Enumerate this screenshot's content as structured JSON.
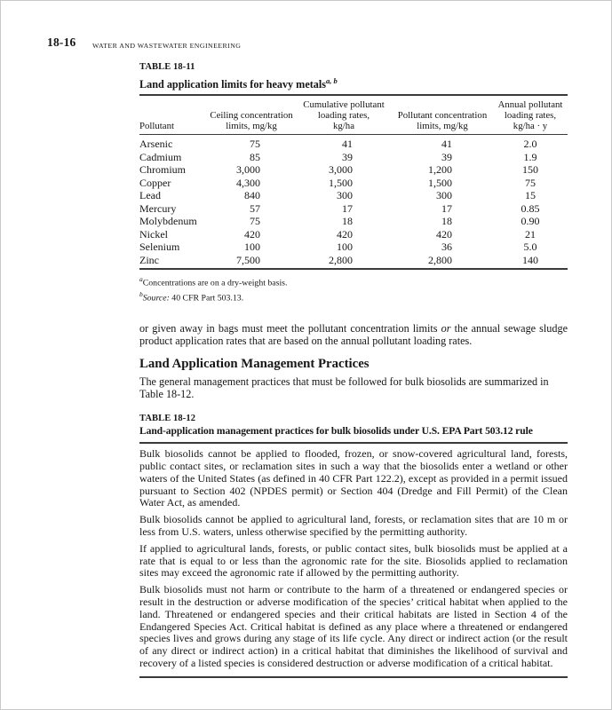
{
  "page_header": {
    "page_number": "18-16",
    "running_head": "WATER AND WASTEWATER ENGINEERING"
  },
  "table_11": {
    "label": "TABLE 18-11",
    "title": "Land application limits for heavy metals",
    "title_note_markers": "a, b",
    "columns": [
      "Pollutant",
      "Ceiling concentration\nlimits, mg/kg",
      "Cumulative pollutant\nloading rates,\nkg/ha",
      "Pollutant concentration\nlimits, mg/kg",
      "Annual pollutant\nloading rates,\nkg/ha · y"
    ],
    "rows": [
      [
        "Arsenic",
        "75",
        "41",
        "41",
        "2.0"
      ],
      [
        "Cadmium",
        "85",
        "39",
        "39",
        "1.9"
      ],
      [
        "Chromium",
        "3,000",
        "3,000",
        "1,200",
        "150"
      ],
      [
        "Copper",
        "4,300",
        "1,500",
        "1,500",
        "75"
      ],
      [
        "Lead",
        "840",
        "300",
        "300",
        "15"
      ],
      [
        "Mercury",
        "57",
        "17",
        "17",
        "0.85"
      ],
      [
        "Molybdenum",
        "75",
        "18",
        "18",
        "0.90"
      ],
      [
        "Nickel",
        "420",
        "420",
        "420",
        "21"
      ],
      [
        "Selenium",
        "100",
        "100",
        "36",
        "5.0"
      ],
      [
        "Zinc",
        "7,500",
        "2,800",
        "2,800",
        "140"
      ]
    ],
    "footnote_a": {
      "marker": "a",
      "text": "Concentrations are on a dry-weight basis."
    },
    "footnote_b": {
      "marker": "b",
      "source_label": "Source:",
      "text": " 40 CFR Part 503.13."
    }
  },
  "intro_paragraph": {
    "before": "or given away in bags must meet the pollutant concentration limits ",
    "emphasis": "or",
    "after": " the annual sewage sludge product application rates that are based on the annual pollutant loading rates."
  },
  "section": {
    "heading": "Land Application Management Practices",
    "paragraph": "The general management practices that must be followed for bulk biosolids are summarized in Table 18-12."
  },
  "table_12": {
    "label": "TABLE 18-12",
    "title": "Land-application management practices for bulk biosolids under U.S. EPA Part 503.12 rule",
    "paragraphs": [
      "Bulk biosolids cannot be applied to flooded, frozen, or snow-covered agricultural land, forests, public contact sites, or reclamation sites in such a way that the biosolids enter a wetland or other waters of the United States (as defined in 40 CFR Part 122.2), except as provided in a permit issued pursuant to Section 402 (NPDES permit) or Section 404 (Dredge and Fill Permit) of the Clean Water Act, as amended.",
      "Bulk biosolids cannot be applied to agricultural land, forests, or reclamation sites that are 10 m or less from U.S. waters, unless otherwise specified by the permitting authority.",
      "If applied to agricultural lands, forests, or public contact sites, bulk biosolids must be applied at a rate that is equal to or less than the agronomic rate for the site. Biosolids applied to reclamation sites may exceed the agronomic rate if allowed by the permitting authority.",
      "Bulk biosolids must not harm or contribute to the harm of a threatened or endangered species or result in the destruction or adverse modification of the species’ critical habitat when applied to the land. Threatened or endangered species and their critical habitats are listed in Section 4 of the Endangered Species Act. Critical habitat is defined as any place where a threatened or endangered species lives and grows during any stage of its life cycle. Any direct or indirect action (or the result of any direct or indirect action) in a critical habitat that diminishes the likelihood of survival and recovery of a listed species is considered destruction or adverse modification of a critical habitat."
    ]
  }
}
